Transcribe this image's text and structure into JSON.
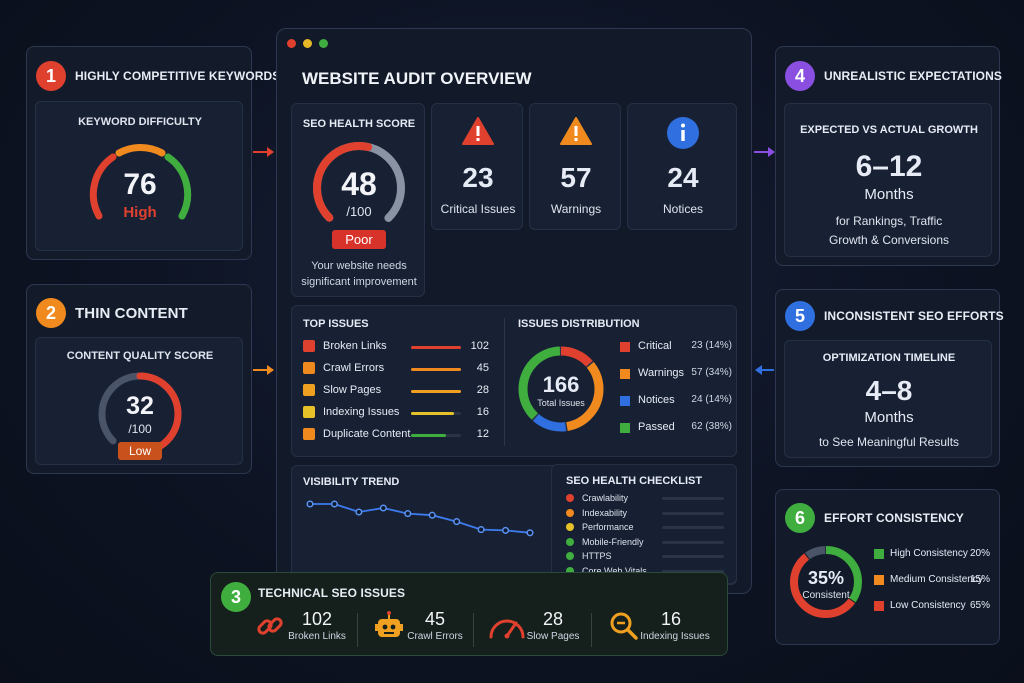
{
  "colors": {
    "red": "#e0402e",
    "orange": "#f08a1e",
    "yellow": "#e6c228",
    "green": "#3fae3f",
    "blue": "#2f6fe0",
    "purple": "#8a4fe0",
    "gray": "#8a93a3"
  },
  "cards": {
    "c1": {
      "number": "1",
      "title": "HIGHLY COMPETITIVE KEYWORDS",
      "subtitle": "KEYWORD DIFFICULTY",
      "value": "76",
      "level": "High",
      "gauge_value": 76
    },
    "c2": {
      "number": "2",
      "title": "THIN CONTENT",
      "subtitle": "CONTENT QUALITY SCORE",
      "value": "32",
      "denom": "/100",
      "level": "Low",
      "gauge_value": 32
    },
    "c3": {
      "number": "3",
      "title": "TECHNICAL SEO ISSUES",
      "items": [
        {
          "value": "102",
          "label": "Broken Links",
          "icon": "chain-link-icon"
        },
        {
          "value": "45",
          "label": "Crawl Errors",
          "icon": "robot-icon"
        },
        {
          "value": "28",
          "label": "Slow Pages",
          "icon": "speedometer-icon"
        },
        {
          "value": "16",
          "label": "Indexing Issues",
          "icon": "magnifier-icon"
        }
      ]
    },
    "c4": {
      "number": "4",
      "title": "UNREALISTIC EXPECTATIONS",
      "subtitle": "EXPECTED VS ACTUAL GROWTH",
      "value": "6–12",
      "unit": "Months",
      "desc1": "for Rankings, Traffic",
      "desc2": "Growth & Conversions"
    },
    "c5": {
      "number": "5",
      "title": "INCONSISTENT SEO EFFORTS",
      "subtitle": "OPTIMIZATION TIMELINE",
      "value": "4–8",
      "unit": "Months",
      "desc1": "to See Meaningful Results"
    },
    "c6": {
      "number": "6",
      "title": "EFFORT CONSISTENCY",
      "center_value": "35%",
      "center_label": "Consistent",
      "legend": [
        {
          "label": "High Consistency",
          "value": "20%",
          "color": "#3fae3f"
        },
        {
          "label": "Medium Consistency",
          "value": "15%",
          "color": "#f08a1e"
        },
        {
          "label": "Low Consistency",
          "value": "65%",
          "color": "#e0402e"
        }
      ]
    }
  },
  "audit": {
    "title": "WEBSITE AUDIT OVERVIEW",
    "health": {
      "label": "SEO HEALTH SCORE",
      "value": "48",
      "denom": "/100",
      "badge": "Poor",
      "note1": "Your website needs",
      "note2": "significant improvement",
      "gauge_value": 48
    },
    "stats": [
      {
        "value": "23",
        "label": "Critical Issues",
        "icon": "warning-triangle-red-icon"
      },
      {
        "value": "57",
        "label": "Warnings",
        "icon": "warning-triangle-orange-icon"
      },
      {
        "value": "24",
        "label": "Notices",
        "icon": "info-circle-icon"
      }
    ],
    "top_issues": {
      "title": "TOP ISSUES",
      "rows": [
        {
          "label": "Broken Links",
          "value": "102",
          "fill": 1.0,
          "color": "#e0402e"
        },
        {
          "label": "Crawl Errors",
          "value": "45",
          "fill": 1.0,
          "color": "#f08a1e"
        },
        {
          "label": "Slow Pages",
          "value": "28",
          "fill": 1.0,
          "color": "#f0a020"
        },
        {
          "label": "Indexing Issues",
          "value": "16",
          "fill": 0.85,
          "color": "#e6c228"
        },
        {
          "label": "Duplicate Content",
          "value": "12",
          "fill": 0.7,
          "color": "#3fae3f"
        }
      ]
    },
    "distribution": {
      "title": "ISSUES DISTRIBUTION",
      "total": "166",
      "total_label": "Total Issues",
      "rows": [
        {
          "label": "Critical",
          "value": "23 (14%)",
          "pct": 14,
          "color": "#e0402e"
        },
        {
          "label": "Warnings",
          "value": "57 (34%)",
          "pct": 34,
          "color": "#f08a1e"
        },
        {
          "label": "Notices",
          "value": "24 (14%)",
          "pct": 14,
          "color": "#2f6fe0"
        },
        {
          "label": "Passed",
          "value": "62 (38%)",
          "pct": 38,
          "color": "#3fae3f"
        }
      ]
    },
    "trend": {
      "title": "VISIBILITY TREND",
      "points": [
        100,
        100,
        90,
        95,
        88,
        86,
        78,
        68,
        67,
        64
      ]
    },
    "checklist": {
      "title": "SEO HEALTH CHECKLIST",
      "items": [
        {
          "label": "Crawlability",
          "color": "#e0402e",
          "fill": 0.0
        },
        {
          "label": "Indexability",
          "color": "#f08a1e",
          "fill": 0.0
        },
        {
          "label": "Performance",
          "color": "#e6c228",
          "fill": 0.0
        },
        {
          "label": "Mobile-Friendly",
          "color": "#3fae3f",
          "fill": 0.0
        },
        {
          "label": "HTTPS",
          "color": "#3fae3f",
          "fill": 0.0
        },
        {
          "label": "Core Web Vitals",
          "color": "#3fae3f",
          "fill": 0.0
        }
      ]
    }
  }
}
